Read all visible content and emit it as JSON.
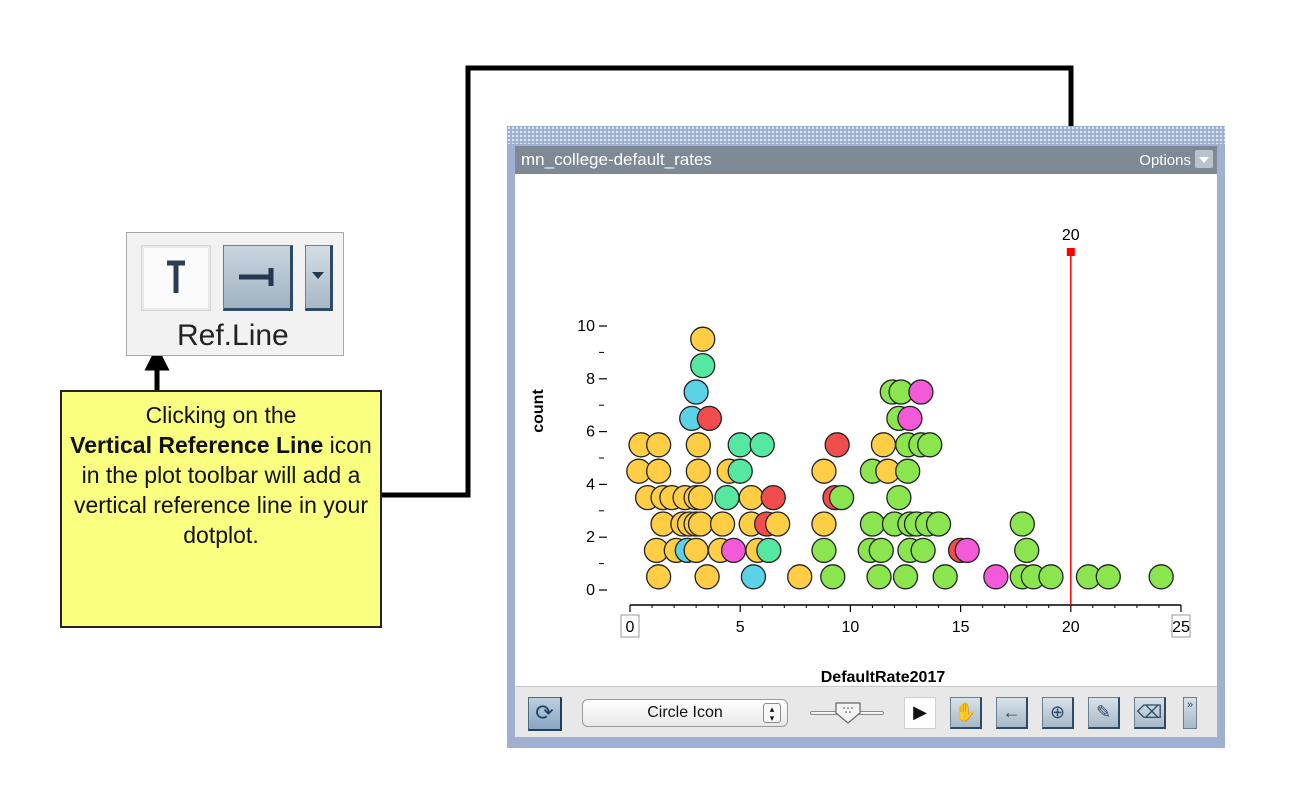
{
  "refline_tool": {
    "label": "Ref.Line",
    "buttons": [
      {
        "icon": "horizontal-reference-line-icon",
        "glyph": "T"
      },
      {
        "icon": "vertical-reference-line-icon",
        "glyph": "⊣"
      },
      {
        "icon": "dropdown-arrow-icon",
        "glyph": "▾"
      }
    ]
  },
  "callout": {
    "line1": "Clicking on the",
    "bold": "Vertical Reference Line",
    "line_rest": " icon in the plot toolbar will add a vertical reference line in your dotplot."
  },
  "window": {
    "title": "mn_college-default_rates",
    "options_label": "Options"
  },
  "chart_data": {
    "type": "scatter",
    "subtype": "dotplot",
    "xlabel": "DefaultRate2017",
    "ylabel": "count",
    "xlim": [
      0,
      25
    ],
    "ylim": [
      0,
      10
    ],
    "x_ticks": [
      "0",
      "5",
      "10",
      "15",
      "20",
      "25"
    ],
    "y_ticks": [
      "0",
      "2",
      "4",
      "6",
      "8",
      "10"
    ],
    "reference_line": {
      "x": 20,
      "label": "20",
      "color": "#ff0000"
    },
    "points": [
      {
        "x": 0.4,
        "y": 4.5,
        "c": "#ffce44"
      },
      {
        "x": 0.5,
        "y": 5.5,
        "c": "#ffce44"
      },
      {
        "x": 0.8,
        "y": 3.5,
        "c": "#ffce44"
      },
      {
        "x": 1.2,
        "y": 1.5,
        "c": "#ffce44"
      },
      {
        "x": 1.3,
        "y": 0.5,
        "c": "#ffce44"
      },
      {
        "x": 1.3,
        "y": 4.5,
        "c": "#ffce44"
      },
      {
        "x": 1.3,
        "y": 5.5,
        "c": "#ffce44"
      },
      {
        "x": 1.5,
        "y": 3.5,
        "c": "#ffce44"
      },
      {
        "x": 1.5,
        "y": 2.5,
        "c": "#ffce44"
      },
      {
        "x": 1.9,
        "y": 3.5,
        "c": "#ffce44"
      },
      {
        "x": 2.1,
        "y": 1.5,
        "c": "#ffce44"
      },
      {
        "x": 2.4,
        "y": 2.5,
        "c": "#ffce44"
      },
      {
        "x": 2.5,
        "y": 3.5,
        "c": "#ffce44"
      },
      {
        "x": 2.6,
        "y": 1.5,
        "c": "#5ad3e6"
      },
      {
        "x": 2.7,
        "y": 2.5,
        "c": "#ffce44"
      },
      {
        "x": 2.8,
        "y": 6.5,
        "c": "#5ad3e6"
      },
      {
        "x": 3.0,
        "y": 7.5,
        "c": "#5ad3e6"
      },
      {
        "x": 3.0,
        "y": 2.5,
        "c": "#ffce44"
      },
      {
        "x": 3.0,
        "y": 1.5,
        "c": "#ffce44"
      },
      {
        "x": 3.0,
        "y": 3.5,
        "c": "#ffce44"
      },
      {
        "x": 3.1,
        "y": 4.5,
        "c": "#ffce44"
      },
      {
        "x": 3.1,
        "y": 5.5,
        "c": "#ffce44"
      },
      {
        "x": 3.2,
        "y": 3.5,
        "c": "#ffce44"
      },
      {
        "x": 3.2,
        "y": 2.5,
        "c": "#ffce44"
      },
      {
        "x": 3.3,
        "y": 9.5,
        "c": "#ffce44"
      },
      {
        "x": 3.3,
        "y": 8.5,
        "c": "#55e8a0"
      },
      {
        "x": 3.6,
        "y": 6.5,
        "c": "#f24d4d"
      },
      {
        "x": 3.5,
        "y": 0.5,
        "c": "#ffce44"
      },
      {
        "x": 4.1,
        "y": 1.5,
        "c": "#ffce44"
      },
      {
        "x": 4.2,
        "y": 2.5,
        "c": "#ffce44"
      },
      {
        "x": 4.4,
        "y": 3.5,
        "c": "#55e8a0"
      },
      {
        "x": 4.5,
        "y": 4.5,
        "c": "#ffce44"
      },
      {
        "x": 4.7,
        "y": 1.5,
        "c": "#f45ad8"
      },
      {
        "x": 5.0,
        "y": 5.5,
        "c": "#55e8a0"
      },
      {
        "x": 5.0,
        "y": 4.5,
        "c": "#55e8a0"
      },
      {
        "x": 5.5,
        "y": 3.5,
        "c": "#ffce44"
      },
      {
        "x": 5.5,
        "y": 2.5,
        "c": "#ffce44"
      },
      {
        "x": 5.6,
        "y": 0.5,
        "c": "#5ad3e6"
      },
      {
        "x": 5.8,
        "y": 1.5,
        "c": "#ffce44"
      },
      {
        "x": 6.0,
        "y": 5.5,
        "c": "#55e8a0"
      },
      {
        "x": 6.2,
        "y": 2.5,
        "c": "#f24d4d"
      },
      {
        "x": 6.3,
        "y": 1.5,
        "c": "#55e8a0"
      },
      {
        "x": 6.5,
        "y": 3.5,
        "c": "#f24d4d"
      },
      {
        "x": 6.7,
        "y": 2.5,
        "c": "#ffce44"
      },
      {
        "x": 7.7,
        "y": 0.5,
        "c": "#ffce44"
      },
      {
        "x": 8.8,
        "y": 1.5,
        "c": "#8ae54f"
      },
      {
        "x": 8.8,
        "y": 2.5,
        "c": "#ffce44"
      },
      {
        "x": 8.8,
        "y": 4.5,
        "c": "#ffce44"
      },
      {
        "x": 9.2,
        "y": 0.5,
        "c": "#8ae54f"
      },
      {
        "x": 9.3,
        "y": 3.5,
        "c": "#f24d4d"
      },
      {
        "x": 9.4,
        "y": 5.5,
        "c": "#f24d4d"
      },
      {
        "x": 9.6,
        "y": 3.5,
        "c": "#8ae54f"
      },
      {
        "x": 10.9,
        "y": 1.5,
        "c": "#8ae54f"
      },
      {
        "x": 11.0,
        "y": 2.5,
        "c": "#8ae54f"
      },
      {
        "x": 11.0,
        "y": 4.5,
        "c": "#8ae54f"
      },
      {
        "x": 11.3,
        "y": 0.5,
        "c": "#8ae54f"
      },
      {
        "x": 11.4,
        "y": 1.5,
        "c": "#8ae54f"
      },
      {
        "x": 11.5,
        "y": 5.5,
        "c": "#ffce44"
      },
      {
        "x": 11.7,
        "y": 4.5,
        "c": "#ffce44"
      },
      {
        "x": 11.9,
        "y": 7.5,
        "c": "#8ae54f"
      },
      {
        "x": 12.0,
        "y": 2.5,
        "c": "#8ae54f"
      },
      {
        "x": 12.2,
        "y": 3.5,
        "c": "#8ae54f"
      },
      {
        "x": 12.2,
        "y": 6.5,
        "c": "#8ae54f"
      },
      {
        "x": 12.3,
        "y": 7.5,
        "c": "#8ae54f"
      },
      {
        "x": 12.5,
        "y": 0.5,
        "c": "#8ae54f"
      },
      {
        "x": 12.6,
        "y": 4.5,
        "c": "#8ae54f"
      },
      {
        "x": 12.6,
        "y": 5.5,
        "c": "#8ae54f"
      },
      {
        "x": 12.7,
        "y": 1.5,
        "c": "#8ae54f"
      },
      {
        "x": 12.7,
        "y": 6.5,
        "c": "#f45ad8"
      },
      {
        "x": 12.7,
        "y": 2.5,
        "c": "#8ae54f"
      },
      {
        "x": 13.0,
        "y": 2.5,
        "c": "#8ae54f"
      },
      {
        "x": 13.2,
        "y": 7.5,
        "c": "#f45ad8"
      },
      {
        "x": 13.2,
        "y": 5.5,
        "c": "#8ae54f"
      },
      {
        "x": 13.3,
        "y": 1.5,
        "c": "#8ae54f"
      },
      {
        "x": 13.5,
        "y": 2.5,
        "c": "#8ae54f"
      },
      {
        "x": 13.6,
        "y": 5.5,
        "c": "#8ae54f"
      },
      {
        "x": 14.0,
        "y": 2.5,
        "c": "#8ae54f"
      },
      {
        "x": 14.3,
        "y": 0.5,
        "c": "#8ae54f"
      },
      {
        "x": 15.0,
        "y": 1.5,
        "c": "#f24d4d"
      },
      {
        "x": 15.3,
        "y": 1.5,
        "c": "#f45ad8"
      },
      {
        "x": 16.6,
        "y": 0.5,
        "c": "#f45ad8"
      },
      {
        "x": 17.8,
        "y": 0.5,
        "c": "#8ae54f"
      },
      {
        "x": 17.8,
        "y": 2.5,
        "c": "#8ae54f"
      },
      {
        "x": 18.0,
        "y": 1.5,
        "c": "#8ae54f"
      },
      {
        "x": 18.3,
        "y": 0.5,
        "c": "#8ae54f"
      },
      {
        "x": 19.1,
        "y": 0.5,
        "c": "#8ae54f"
      },
      {
        "x": 20.8,
        "y": 0.5,
        "c": "#8ae54f"
      },
      {
        "x": 21.7,
        "y": 0.5,
        "c": "#8ae54f"
      },
      {
        "x": 24.1,
        "y": 0.5,
        "c": "#8ae54f"
      }
    ]
  },
  "toolbar": {
    "refresh_icon": "refresh-icon",
    "point_style": "Circle Icon",
    "tools": [
      {
        "name": "select-tool-icon",
        "glyph": "▶"
      },
      {
        "name": "hand-tool-icon",
        "glyph": "✋"
      },
      {
        "name": "arrow-tool-icon",
        "glyph": "←"
      },
      {
        "name": "add-point-icon",
        "glyph": "⊕"
      },
      {
        "name": "pencil-icon",
        "glyph": "✎"
      },
      {
        "name": "eraser-icon",
        "glyph": "⌫"
      }
    ],
    "more_glyph": "»"
  },
  "colors": {
    "callout_bg": "#fbff7f",
    "window_frame": "#9fb0d0",
    "title_bar": "#7d8a96",
    "ref_line": "#ff0000"
  }
}
